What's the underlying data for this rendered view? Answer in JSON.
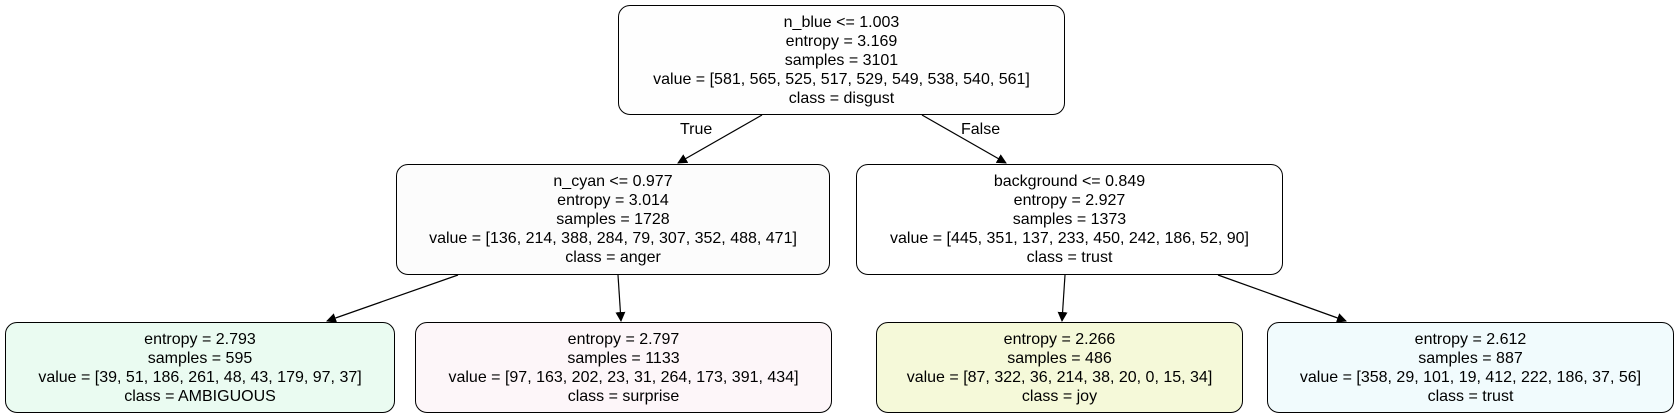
{
  "tree": {
    "root": {
      "lines": [
        "n_blue <= 1.003",
        "entropy = 3.169",
        "samples = 3101",
        "value = [581, 565, 525, 517, 529, 549, 538, 540, 561]",
        "class = disgust"
      ],
      "fill": "#fefefe"
    },
    "left": {
      "lines": [
        "n_cyan <= 0.977",
        "entropy = 3.014",
        "samples = 1728",
        "value = [136, 214, 388, 284, 79, 307, 352, 488, 471]",
        "class = anger"
      ],
      "fill": "#fcfcfc"
    },
    "right": {
      "lines": [
        "background <= 0.849",
        "entropy = 2.927",
        "samples = 1373",
        "value = [445, 351, 137, 233, 450, 242, 186, 52, 90]",
        "class = trust"
      ],
      "fill": "#ffffff"
    },
    "leaf1": {
      "lines": [
        "entropy = 2.793",
        "samples = 595",
        "value = [39, 51, 186, 261, 48, 43, 179, 97, 37]",
        "class = AMBIGUOUS"
      ],
      "fill": "#eafbf1"
    },
    "leaf2": {
      "lines": [
        "entropy = 2.797",
        "samples = 1133",
        "value = [97, 163, 202, 23, 31, 264, 173, 391, 434]",
        "class = surprise"
      ],
      "fill": "#fdf6f9"
    },
    "leaf3": {
      "lines": [
        "entropy = 2.266",
        "samples = 486",
        "value = [87, 322, 36, 214, 38, 20, 0, 15, 34]",
        "class = joy"
      ],
      "fill": "#f5f9d9"
    },
    "leaf4": {
      "lines": [
        "entropy = 2.612",
        "samples = 887",
        "value = [358, 29, 101, 19, 412, 222, 186, 37, 56]",
        "class = trust"
      ],
      "fill": "#f1fbfd"
    }
  },
  "edge_labels": {
    "true": "True",
    "false": "False"
  }
}
